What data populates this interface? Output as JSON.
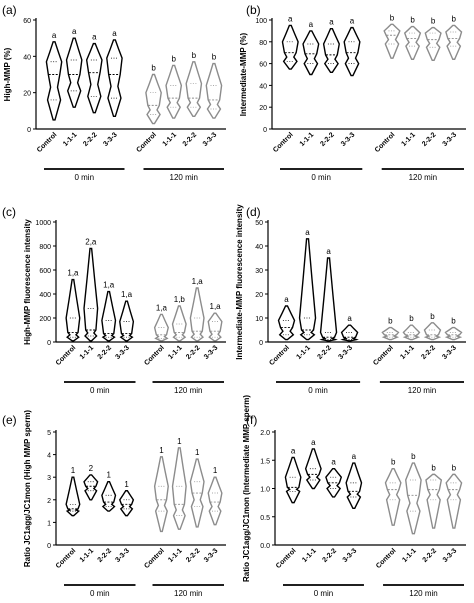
{
  "chart_data": [
    {
      "panel": "(a)",
      "type": "violin",
      "ylabel": "High-MMP (%)",
      "ylim": [
        0,
        60
      ],
      "yticks": [
        0,
        20,
        40,
        60
      ],
      "groups": [
        "0 min",
        "120 min"
      ],
      "categories": [
        "Control",
        "1-1-1",
        "2-2-2",
        "3-3-3"
      ],
      "series": [
        {
          "group": "0 min",
          "color": "#000000",
          "stats": [
            {
              "category": "Control",
              "min": 5,
              "q1": 16,
              "median": 30,
              "q3": 37,
              "max": 48,
              "label": "a"
            },
            {
              "category": "1-1-1",
              "min": 12,
              "q1": 21,
              "median": 30,
              "q3": 38,
              "max": 50,
              "label": "a"
            },
            {
              "category": "2-2-2",
              "min": 9,
              "q1": 18,
              "median": 31,
              "q3": 38,
              "max": 47,
              "label": "a"
            },
            {
              "category": "3-3-3",
              "min": 7,
              "q1": 17,
              "median": 30,
              "q3": 39,
              "max": 49,
              "label": "a"
            }
          ]
        },
        {
          "group": "120 min",
          "color": "#8c8c8c",
          "stats": [
            {
              "category": "Control",
              "min": 3,
              "q1": 8,
              "median": 13,
              "q3": 20,
              "max": 30,
              "label": "b"
            },
            {
              "category": "1-1-1",
              "min": 6,
              "q1": 12,
              "median": 17,
              "q3": 24,
              "max": 35,
              "label": "b"
            },
            {
              "category": "2-2-2",
              "min": 7,
              "q1": 12,
              "median": 17,
              "q3": 25,
              "max": 37,
              "label": "b"
            },
            {
              "category": "3-3-3",
              "min": 6,
              "q1": 11,
              "median": 16,
              "q3": 24,
              "max": 36,
              "label": "b"
            }
          ]
        }
      ]
    },
    {
      "panel": "(b)",
      "type": "violin",
      "ylabel": "Intermediate-MMP (%)",
      "ylim": [
        0,
        100
      ],
      "yticks": [
        0,
        20,
        40,
        60,
        80,
        100
      ],
      "groups": [
        "0 min",
        "120 min"
      ],
      "categories": [
        "Control",
        "1-1-1",
        "2-2-2",
        "3-3-3"
      ],
      "series": [
        {
          "group": "0 min",
          "color": "#000000",
          "stats": [
            {
              "category": "Control",
              "min": 55,
              "q1": 62,
              "median": 70,
              "q3": 80,
              "max": 95,
              "label": "a"
            },
            {
              "category": "1-1-1",
              "min": 50,
              "q1": 60,
              "median": 69,
              "q3": 78,
              "max": 90,
              "label": "a"
            },
            {
              "category": "2-2-2",
              "min": 52,
              "q1": 60,
              "median": 68,
              "q3": 78,
              "max": 92,
              "label": "a"
            },
            {
              "category": "3-3-3",
              "min": 49,
              "q1": 60,
              "median": 70,
              "q3": 80,
              "max": 93,
              "label": "a"
            }
          ]
        },
        {
          "group": "120 min",
          "color": "#8c8c8c",
          "stats": [
            {
              "category": "Control",
              "min": 65,
              "q1": 78,
              "median": 86,
              "q3": 90,
              "max": 96,
              "label": "b"
            },
            {
              "category": "1-1-1",
              "min": 64,
              "q1": 76,
              "median": 83,
              "q3": 88,
              "max": 94,
              "label": "b"
            },
            {
              "category": "2-2-2",
              "min": 63,
              "q1": 75,
              "median": 82,
              "q3": 88,
              "max": 93,
              "label": "b"
            },
            {
              "category": "3-3-3",
              "min": 64,
              "q1": 76,
              "median": 83,
              "q3": 89,
              "max": 95,
              "label": "b"
            }
          ]
        }
      ]
    },
    {
      "panel": "(c)",
      "type": "violin",
      "ylabel": "High-MMP fluorescence intensity",
      "ylim": [
        0,
        1000
      ],
      "yticks": [
        0,
        200,
        400,
        600,
        800,
        1000
      ],
      "groups": [
        "0 min",
        "120 min"
      ],
      "categories": [
        "Control",
        "1-1-1",
        "2-2-2",
        "3-3-3"
      ],
      "series": [
        {
          "group": "0 min",
          "color": "#000000",
          "stats": [
            {
              "category": "Control",
              "min": 10,
              "q1": 40,
              "median": 80,
              "q3": 200,
              "max": 520,
              "label": "1,a"
            },
            {
              "category": "1-1-1",
              "min": 10,
              "q1": 50,
              "median": 100,
              "q3": 280,
              "max": 780,
              "label": "2,a"
            },
            {
              "category": "2-2-2",
              "min": 10,
              "q1": 40,
              "median": 70,
              "q3": 180,
              "max": 420,
              "label": "1,a"
            },
            {
              "category": "3-3-3",
              "min": 10,
              "q1": 40,
              "median": 70,
              "q3": 170,
              "max": 340,
              "label": "1,a"
            }
          ]
        },
        {
          "group": "120 min",
          "color": "#8c8c8c",
          "stats": [
            {
              "category": "Control",
              "min": 10,
              "q1": 30,
              "median": 60,
              "q3": 120,
              "max": 230,
              "label": "1,a"
            },
            {
              "category": "1-1-1",
              "min": 10,
              "q1": 40,
              "median": 80,
              "q3": 150,
              "max": 300,
              "label": "1,b"
            },
            {
              "category": "2-2-2",
              "min": 10,
              "q1": 40,
              "median": 90,
              "q3": 200,
              "max": 450,
              "label": "1,a"
            },
            {
              "category": "3-3-3",
              "min": 10,
              "q1": 40,
              "median": 90,
              "q3": 170,
              "max": 240,
              "label": "1,a"
            }
          ]
        }
      ]
    },
    {
      "panel": "(d)",
      "type": "violin",
      "ylabel": "Intermediate-MMP fluorescence intensity",
      "ylim": [
        0,
        50
      ],
      "yticks": [
        0,
        10,
        20,
        30,
        40,
        50
      ],
      "groups": [
        "0 min",
        "120 min"
      ],
      "categories": [
        "Control",
        "1-1-1",
        "2-2-2",
        "3-3-3"
      ],
      "series": [
        {
          "group": "0 min",
          "color": "#000000",
          "stats": [
            {
              "category": "Control",
              "min": 1,
              "q1": 3,
              "median": 6,
              "q3": 9,
              "max": 15,
              "label": "a"
            },
            {
              "category": "1-1-1",
              "min": 1,
              "q1": 3,
              "median": 5,
              "q3": 10,
              "max": 43,
              "label": "a"
            },
            {
              "category": "2-2-2",
              "min": 0.5,
              "q1": 1,
              "median": 2,
              "q3": 4,
              "max": 35,
              "label": "a"
            },
            {
              "category": "3-3-3",
              "min": 0.5,
              "q1": 1,
              "median": 2,
              "q3": 4,
              "max": 7,
              "label": "a"
            }
          ]
        },
        {
          "group": "120 min",
          "color": "#8c8c8c",
          "stats": [
            {
              "category": "Control",
              "min": 1,
              "q1": 2,
              "median": 3,
              "q3": 4,
              "max": 6,
              "label": "b"
            },
            {
              "category": "1-1-1",
              "min": 1,
              "q1": 2,
              "median": 3,
              "q3": 4,
              "max": 7,
              "label": "b"
            },
            {
              "category": "2-2-2",
              "min": 1,
              "q1": 2,
              "median": 3,
              "q3": 5,
              "max": 8,
              "label": "b"
            },
            {
              "category": "3-3-3",
              "min": 1,
              "q1": 2,
              "median": 3,
              "q3": 4,
              "max": 6,
              "label": "b"
            }
          ]
        }
      ]
    },
    {
      "panel": "(e)",
      "type": "violin",
      "ylabel": "Ratio JC1agg/JC1mon (High MMP sperm)",
      "ylim": [
        0,
        5
      ],
      "yticks": [
        0,
        1,
        2,
        3,
        4,
        5
      ],
      "groups": [
        "0 min",
        "120 min"
      ],
      "categories": [
        "Control",
        "1-1-1",
        "2-2-2",
        "3-3-3"
      ],
      "series": [
        {
          "group": "0 min",
          "color": "#000000",
          "stats": [
            {
              "category": "Control",
              "min": 1.3,
              "q1": 1.5,
              "median": 1.6,
              "q3": 1.8,
              "max": 3.0,
              "label": "1"
            },
            {
              "category": "1-1-1",
              "min": 2.0,
              "q1": 2.4,
              "median": 2.6,
              "q3": 2.8,
              "max": 3.1,
              "label": "2"
            },
            {
              "category": "2-2-2",
              "min": 1.5,
              "q1": 1.7,
              "median": 1.9,
              "q3": 2.2,
              "max": 2.8,
              "label": "1"
            },
            {
              "category": "3-3-3",
              "min": 1.3,
              "q1": 1.6,
              "median": 1.8,
              "q3": 2.0,
              "max": 2.4,
              "label": "1"
            }
          ]
        },
        {
          "group": "120 min",
          "color": "#8c8c8c",
          "stats": [
            {
              "category": "Control",
              "min": 0.6,
              "q1": 1.5,
              "median": 2.0,
              "q3": 2.6,
              "max": 3.9,
              "label": "1"
            },
            {
              "category": "1-1-1",
              "min": 0.7,
              "q1": 1.3,
              "median": 1.8,
              "q3": 2.6,
              "max": 4.3,
              "label": "1"
            },
            {
              "category": "2-2-2",
              "min": 0.8,
              "q1": 1.7,
              "median": 2.3,
              "q3": 2.8,
              "max": 3.8,
              "label": "1"
            },
            {
              "category": "3-3-3",
              "min": 0.9,
              "q1": 1.5,
              "median": 1.9,
              "q3": 2.3,
              "max": 3.0,
              "label": "1"
            }
          ]
        }
      ]
    },
    {
      "panel": "(f)",
      "type": "violin",
      "ylabel": "Ratio JC1agg/JC1mon (Intermediate MMP sperm)",
      "ylim": [
        0,
        2.0
      ],
      "yticks": [
        0,
        0.5,
        1.0,
        1.5,
        2.0
      ],
      "groups": [
        "0 min",
        "120 min"
      ],
      "categories": [
        "Control",
        "1-1-1",
        "2-2-2",
        "3-3-3"
      ],
      "series": [
        {
          "group": "0 min",
          "color": "#000000",
          "stats": [
            {
              "category": "Control",
              "min": 0.75,
              "q1": 0.95,
              "median": 1.02,
              "q3": 1.2,
              "max": 1.55,
              "label": "a"
            },
            {
              "category": "1-1-1",
              "min": 1.0,
              "q1": 1.15,
              "median": 1.25,
              "q3": 1.35,
              "max": 1.7,
              "label": "a"
            },
            {
              "category": "2-2-2",
              "min": 0.85,
              "q1": 1.0,
              "median": 1.1,
              "q3": 1.2,
              "max": 1.35,
              "label": "a"
            },
            {
              "category": "3-3-3",
              "min": 0.65,
              "q1": 0.85,
              "median": 0.95,
              "q3": 1.1,
              "max": 1.45,
              "label": "a"
            }
          ]
        },
        {
          "group": "120 min",
          "color": "#8c8c8c",
          "stats": [
            {
              "category": "Control",
              "min": 0.35,
              "q1": 0.8,
              "median": 0.98,
              "q3": 1.1,
              "max": 1.35,
              "label": "b"
            },
            {
              "category": "1-1-1",
              "min": 0.2,
              "q1": 0.6,
              "median": 0.88,
              "q3": 1.15,
              "max": 1.45,
              "label": "b"
            },
            {
              "category": "2-2-2",
              "min": 0.3,
              "q1": 0.8,
              "median": 0.98,
              "q3": 1.15,
              "max": 1.25,
              "label": "b"
            },
            {
              "category": "3-3-3",
              "min": 0.3,
              "q1": 0.8,
              "median": 0.98,
              "q3": 1.1,
              "max": 1.25,
              "label": "b"
            }
          ]
        }
      ]
    }
  ]
}
